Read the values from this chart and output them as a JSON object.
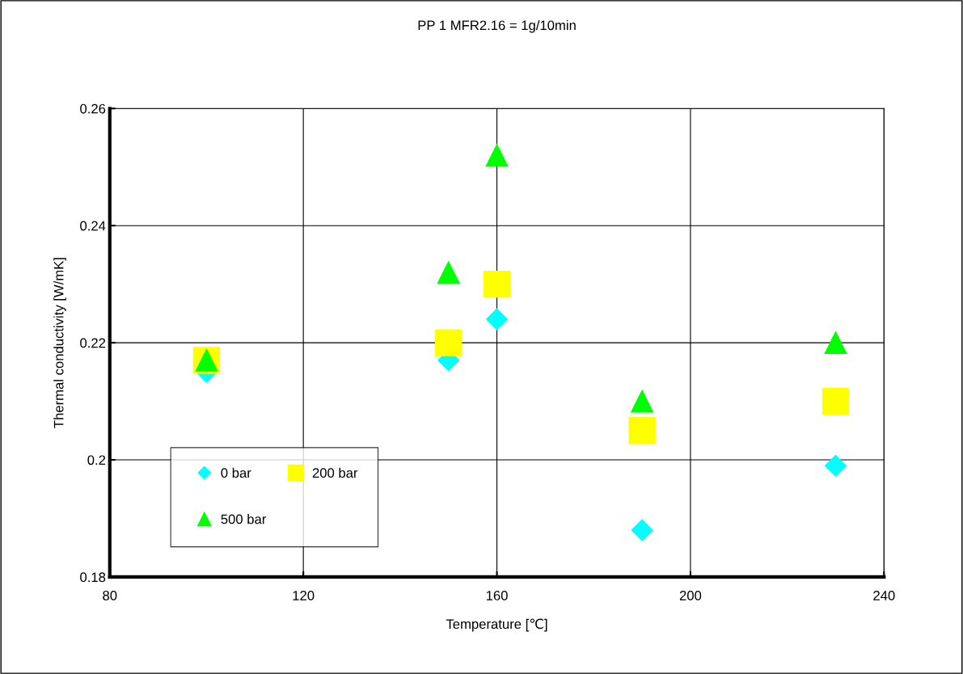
{
  "chart_data": {
    "type": "scatter",
    "title": "PP 1 MFR2.16 = 1g/10min",
    "xlabel": "Temperature [℃]",
    "ylabel": "Thermal conductivity [W/mK]",
    "x": [
      100,
      150,
      160,
      190,
      230
    ],
    "series": [
      {
        "name": "0 bar",
        "color": "#00ffff",
        "marker": "diamond",
        "values": [
          0.215,
          0.217,
          0.224,
          0.188,
          0.199
        ]
      },
      {
        "name": "200 bar",
        "color": "#ffff00",
        "marker": "square",
        "values": [
          0.217,
          0.22,
          0.23,
          0.205,
          0.21
        ]
      },
      {
        "name": "500 bar",
        "color": "#00ff00",
        "marker": "triangle",
        "values": [
          0.217,
          0.232,
          0.252,
          0.21,
          0.22
        ]
      }
    ],
    "xlim": [
      80,
      240
    ],
    "xticks": [
      80,
      120,
      160,
      200,
      240
    ],
    "ylim": [
      0.18,
      0.26
    ],
    "yticks": [
      {
        "value": 0.18,
        "label": "0.18"
      },
      {
        "value": 0.2,
        "label": "0.2"
      },
      {
        "value": 0.22,
        "label": "0.22"
      },
      {
        "value": 0.24,
        "label": "0.24"
      },
      {
        "value": 0.26,
        "label": "0.26"
      }
    ],
    "grid": true,
    "legend": "bottom left"
  }
}
